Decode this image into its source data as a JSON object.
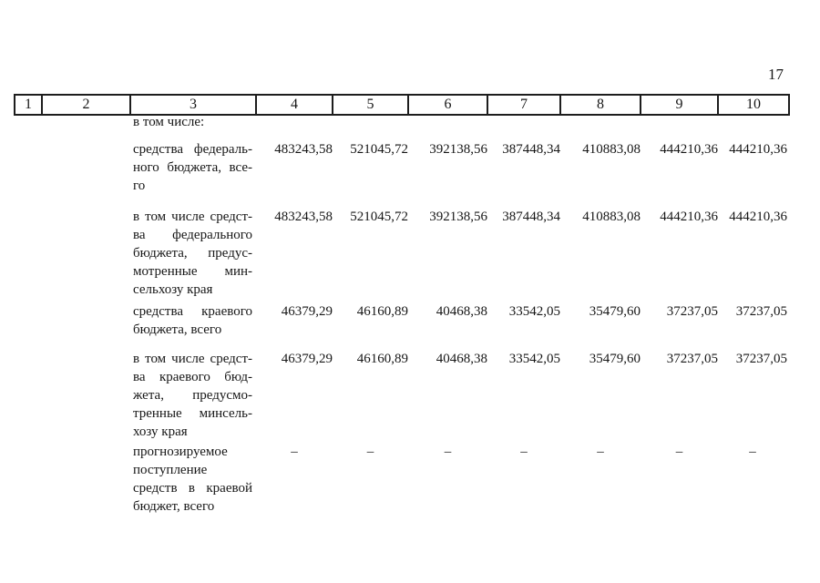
{
  "page": {
    "number": "17"
  },
  "table": {
    "columns": [
      "1",
      "2",
      "3",
      "4",
      "5",
      "6",
      "7",
      "8",
      "9",
      "10"
    ],
    "rows": [
      {
        "label_lines": [
          "в том числе:"
        ],
        "values": []
      },
      {
        "label_lines": [
          "средства федераль-",
          "ного бюджета, все-",
          "го"
        ],
        "values": [
          "483243,58",
          "521045,72",
          "392138,56",
          "387448,34",
          "410883,08",
          "444210,36",
          "444210,36"
        ]
      },
      {
        "label_lines": [
          "в том числе средст-",
          "ва федерального",
          "бюджета, предус-",
          "мотренные мин-",
          "сельхозу края"
        ],
        "values": [
          "483243,58",
          "521045,72",
          "392138,56",
          "387448,34",
          "410883,08",
          "444210,36",
          "444210,36"
        ]
      },
      {
        "label_lines": [
          "средства краевого",
          "бюджета, всего"
        ],
        "values": [
          "46379,29",
          "46160,89",
          "40468,38",
          "33542,05",
          "35479,60",
          "37237,05",
          "37237,05"
        ]
      },
      {
        "label_lines": [
          "в том числе средст-",
          "ва краевого бюд-",
          "жета, предусмо-",
          "тренные минсель-",
          "хозу края"
        ],
        "values": [
          "46379,29",
          "46160,89",
          "40468,38",
          "33542,05",
          "35479,60",
          "37237,05",
          "37237,05"
        ]
      },
      {
        "label_lines": [
          "прогнозируемое",
          "поступление",
          "средств в краевой",
          "бюджет, всего"
        ],
        "values": [
          "–",
          "–",
          "–",
          "–",
          "–",
          "–",
          "–"
        ]
      }
    ]
  }
}
